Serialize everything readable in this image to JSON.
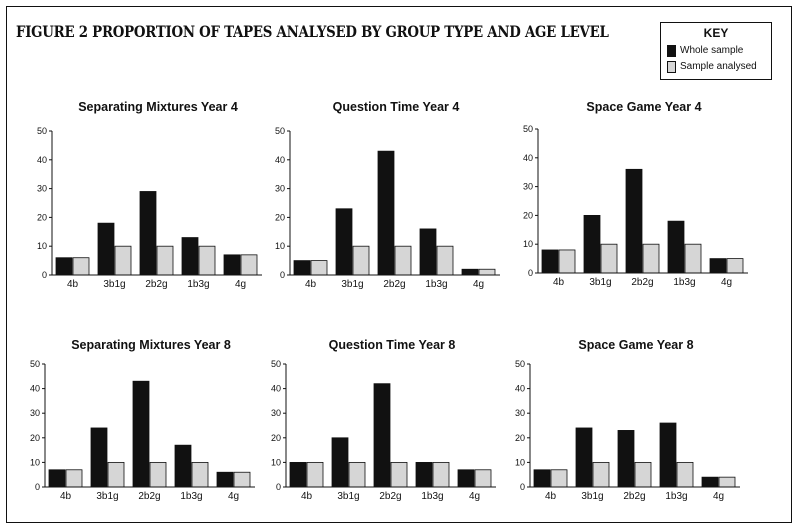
{
  "figure_title": "FIGURE 2   PROPORTION OF TAPES ANALYSED BY GROUP TYPE AND AGE LEVEL",
  "key": {
    "title": "KEY",
    "items": [
      {
        "label": "Whole sample",
        "color": "#111111"
      },
      {
        "label": "Sample analysed",
        "color": "#d6d6d6"
      }
    ]
  },
  "chart_data": [
    {
      "type": "bar",
      "title": "Separating Mixtures Year 4",
      "categories": [
        "4b",
        "3b1g",
        "2b2g",
        "1b3g",
        "4g"
      ],
      "ylim": [
        0,
        50
      ],
      "yticks": [
        0,
        10,
        20,
        30,
        40,
        50
      ],
      "series": [
        {
          "name": "Whole sample",
          "values": [
            6,
            18,
            29,
            13,
            7
          ]
        },
        {
          "name": "Sample analysed",
          "values": [
            6,
            10,
            10,
            10,
            7
          ]
        }
      ]
    },
    {
      "type": "bar",
      "title": "Question Time Year 4",
      "categories": [
        "4b",
        "3b1g",
        "2b2g",
        "1b3g",
        "4g"
      ],
      "ylim": [
        0,
        50
      ],
      "yticks": [
        0,
        10,
        20,
        30,
        40,
        50
      ],
      "series": [
        {
          "name": "Whole sample",
          "values": [
            5,
            23,
            43,
            16,
            2
          ]
        },
        {
          "name": "Sample analysed",
          "values": [
            5,
            10,
            10,
            10,
            2
          ]
        }
      ]
    },
    {
      "type": "bar",
      "title": "Space Game Year 4",
      "categories": [
        "4b",
        "3b1g",
        "2b2g",
        "1b3g",
        "4g"
      ],
      "ylim": [
        0,
        50
      ],
      "yticks": [
        0,
        10,
        20,
        30,
        40,
        50
      ],
      "series": [
        {
          "name": "Whole sample",
          "values": [
            8,
            20,
            36,
            18,
            5
          ]
        },
        {
          "name": "Sample analysed",
          "values": [
            8,
            10,
            10,
            10,
            5
          ]
        }
      ]
    },
    {
      "type": "bar",
      "title": "Separating Mixtures Year 8",
      "categories": [
        "4b",
        "3b1g",
        "2b2g",
        "1b3g",
        "4g"
      ],
      "ylim": [
        0,
        50
      ],
      "yticks": [
        0,
        10,
        20,
        30,
        40,
        50
      ],
      "series": [
        {
          "name": "Whole sample",
          "values": [
            7,
            24,
            43,
            17,
            6
          ]
        },
        {
          "name": "Sample analysed",
          "values": [
            7,
            10,
            10,
            10,
            6
          ]
        }
      ]
    },
    {
      "type": "bar",
      "title": "Question Time Year 8",
      "categories": [
        "4b",
        "3b1g",
        "2b2g",
        "1b3g",
        "4g"
      ],
      "ylim": [
        0,
        50
      ],
      "yticks": [
        0,
        10,
        20,
        30,
        40,
        50
      ],
      "series": [
        {
          "name": "Whole sample",
          "values": [
            10,
            20,
            42,
            10,
            7
          ]
        },
        {
          "name": "Sample analysed",
          "values": [
            10,
            10,
            10,
            10,
            7
          ]
        }
      ]
    },
    {
      "type": "bar",
      "title": "Space Game Year 8",
      "categories": [
        "4b",
        "3b1g",
        "2b2g",
        "1b3g",
        "4g"
      ],
      "ylim": [
        0,
        50
      ],
      "yticks": [
        0,
        10,
        20,
        30,
        40,
        50
      ],
      "series": [
        {
          "name": "Whole sample",
          "values": [
            7,
            24,
            23,
            26,
            4
          ]
        },
        {
          "name": "Sample analysed",
          "values": [
            7,
            10,
            10,
            10,
            4
          ]
        }
      ]
    }
  ]
}
